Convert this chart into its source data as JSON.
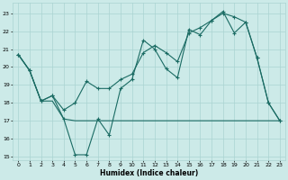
{
  "xlabel": "Humidex (Indice chaleur)",
  "bg_color": "#cceae8",
  "grid_color": "#aad4d2",
  "line_color": "#1a6b63",
  "xlim": [
    -0.5,
    23.5
  ],
  "ylim": [
    14.8,
    23.6
  ],
  "yticks": [
    15,
    16,
    17,
    18,
    19,
    20,
    21,
    22,
    23
  ],
  "xticks": [
    0,
    1,
    2,
    3,
    4,
    5,
    6,
    7,
    8,
    9,
    10,
    11,
    12,
    13,
    14,
    15,
    16,
    17,
    18,
    19,
    20,
    21,
    22,
    23
  ],
  "line1_x": [
    0,
    1,
    2,
    3,
    4,
    5,
    6,
    7,
    8,
    9,
    10,
    11,
    12,
    13,
    14,
    15,
    16,
    17,
    18,
    19,
    20,
    21,
    22,
    23
  ],
  "line1_y": [
    20.7,
    19.8,
    18.1,
    18.4,
    17.1,
    15.1,
    15.1,
    17.1,
    16.2,
    18.8,
    19.3,
    21.5,
    21.0,
    19.9,
    19.4,
    22.1,
    21.8,
    22.6,
    23.1,
    21.9,
    22.5,
    20.5,
    18.0,
    17.0
  ],
  "line2_x": [
    0,
    1,
    2,
    3,
    4,
    5,
    6,
    7,
    8,
    9,
    10,
    11,
    12,
    13,
    14,
    15,
    16,
    17,
    18,
    19,
    20,
    21,
    22,
    23
  ],
  "line2_y": [
    20.7,
    19.8,
    18.1,
    18.1,
    17.1,
    17.0,
    17.0,
    17.0,
    17.0,
    17.0,
    17.0,
    17.0,
    17.0,
    17.0,
    17.0,
    17.0,
    17.0,
    17.0,
    17.0,
    17.0,
    17.0,
    17.0,
    17.0,
    17.0
  ],
  "line3_x": [
    0,
    1,
    2,
    3,
    4,
    5,
    6,
    7,
    8,
    9,
    10,
    11,
    12,
    13,
    14,
    15,
    16,
    17,
    18,
    19,
    20,
    21,
    22,
    23
  ],
  "line3_y": [
    20.7,
    19.8,
    18.1,
    18.4,
    17.6,
    18.0,
    19.2,
    18.8,
    18.8,
    19.3,
    19.6,
    20.8,
    21.2,
    20.8,
    20.3,
    21.9,
    22.2,
    22.6,
    23.0,
    22.8,
    22.5,
    20.5,
    18.0,
    17.0
  ]
}
